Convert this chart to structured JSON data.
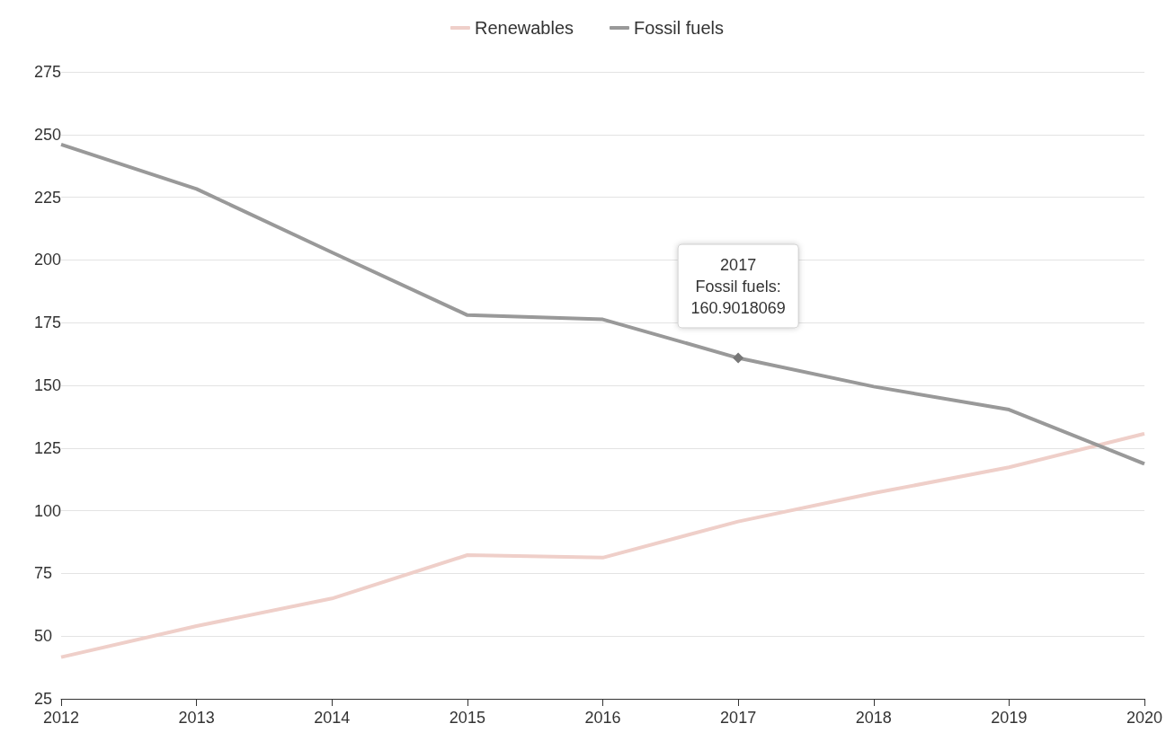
{
  "chart_data": {
    "type": "line",
    "categories": [
      "2012",
      "2013",
      "2014",
      "2015",
      "2016",
      "2017",
      "2018",
      "2019",
      "2020"
    ],
    "series": [
      {
        "name": "Renewables",
        "color": "#efcfc9",
        "values": [
          41.6,
          54,
          65,
          82.3,
          81.3,
          95.7,
          107,
          117.3,
          130.7
        ]
      },
      {
        "name": "Fossil fuels",
        "color": "#999999",
        "values": [
          246,
          228.3,
          203,
          178,
          176.3,
          160.9018069,
          149.5,
          140.3,
          118.7
        ]
      }
    ],
    "ylim": [
      25,
      275
    ],
    "yticks": [
      25,
      50,
      75,
      100,
      125,
      150,
      175,
      200,
      225,
      250,
      275
    ],
    "grid": "y",
    "legend": "top",
    "marker": "none",
    "line_style": "solid",
    "annotations": [
      {
        "text": "2017\nFossil fuels:\n160.9018069",
        "x": "2017",
        "y": 160.9018069
      }
    ]
  }
}
